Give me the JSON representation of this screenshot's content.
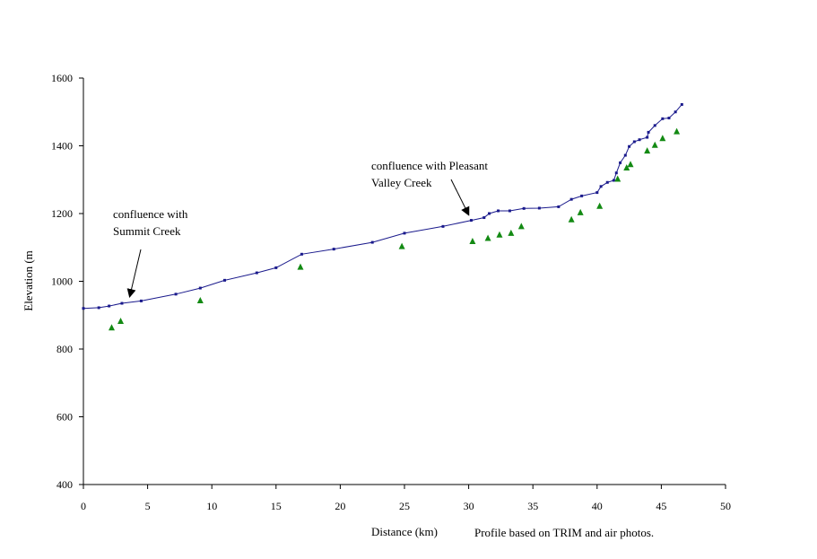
{
  "chart_data": {
    "type": "line",
    "xlabel": "Distance (km)",
    "ylabel": "Elevation (m",
    "xlim": [
      0,
      50
    ],
    "ylim": [
      400,
      1600
    ],
    "xticks": [
      0,
      5,
      10,
      15,
      20,
      25,
      30,
      35,
      40,
      45,
      50
    ],
    "yticks": [
      400,
      600,
      800,
      1000,
      1200,
      1400,
      1600
    ],
    "grid": false,
    "legend": "none",
    "footnote": "Profile based on TRIM and air photos.",
    "colors": {
      "profile": "#1a1a8c",
      "points": "#138a13"
    },
    "series": [
      {
        "style": "line-with-markers",
        "x": [
          0,
          1.2,
          2.0,
          3.0,
          4.5,
          7.2,
          9.1,
          11.0,
          13.5,
          15.0,
          17.0,
          19.5,
          22.5,
          25.0,
          28.0,
          30.2,
          31.2,
          31.6,
          32.3,
          33.2,
          34.3,
          35.5,
          37.0,
          38.0,
          38.8,
          40.0,
          40.3,
          40.8,
          41.3,
          41.5,
          41.8,
          42.2,
          42.5,
          42.9,
          43.3,
          43.9,
          44.0,
          44.5,
          45.1,
          45.6,
          46.1,
          46.6
        ],
        "y": [
          920,
          922,
          927,
          935,
          942,
          962,
          980,
          1003,
          1025,
          1040,
          1080,
          1095,
          1115,
          1142,
          1162,
          1180,
          1188,
          1200,
          1208,
          1208,
          1215,
          1216,
          1220,
          1242,
          1252,
          1262,
          1280,
          1292,
          1298,
          1320,
          1350,
          1372,
          1398,
          1412,
          1418,
          1425,
          1440,
          1460,
          1480,
          1482,
          1500,
          1522
        ]
      },
      {
        "style": "markers",
        "x": [
          2.2,
          2.9,
          9.1,
          16.9,
          24.8,
          30.3,
          31.5,
          32.4,
          33.3,
          34.1,
          38.0,
          38.7,
          40.2,
          41.6,
          42.3,
          42.6,
          43.9,
          44.5,
          45.1,
          46.2
        ],
        "y": [
          863,
          882,
          943,
          1042,
          1103,
          1118,
          1127,
          1137,
          1142,
          1162,
          1182,
          1203,
          1222,
          1302,
          1335,
          1345,
          1385,
          1402,
          1422,
          1442
        ]
      }
    ],
    "annotations": [
      {
        "lines": [
          "confluence with",
          "Summit Creek"
        ],
        "x": 3.5,
        "y": 938
      },
      {
        "lines": [
          "confluence with Pleasant",
          "Valley Creek"
        ],
        "x": 30.2,
        "y": 1181
      }
    ]
  }
}
